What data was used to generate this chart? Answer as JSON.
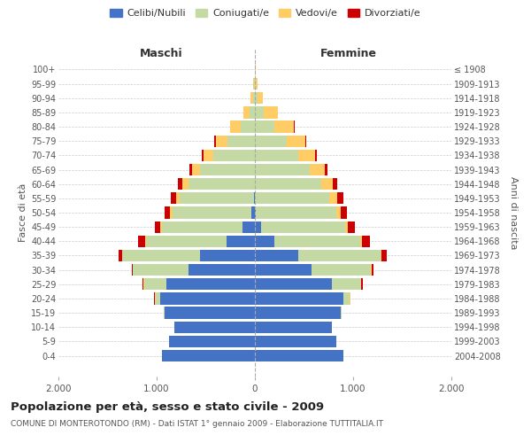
{
  "age_groups": [
    "0-4",
    "5-9",
    "10-14",
    "15-19",
    "20-24",
    "25-29",
    "30-34",
    "35-39",
    "40-44",
    "45-49",
    "50-54",
    "55-59",
    "60-64",
    "65-69",
    "70-74",
    "75-79",
    "80-84",
    "85-89",
    "90-94",
    "95-99",
    "100+"
  ],
  "birth_years": [
    "2004-2008",
    "1999-2003",
    "1994-1998",
    "1989-1993",
    "1984-1988",
    "1979-1983",
    "1974-1978",
    "1969-1973",
    "1964-1968",
    "1959-1963",
    "1954-1958",
    "1949-1953",
    "1944-1948",
    "1939-1943",
    "1934-1938",
    "1929-1933",
    "1924-1928",
    "1919-1923",
    "1914-1918",
    "1909-1913",
    "≤ 1908"
  ],
  "male_celibe": [
    950,
    870,
    820,
    920,
    960,
    900,
    680,
    560,
    290,
    130,
    40,
    5,
    0,
    0,
    0,
    0,
    0,
    0,
    0,
    0,
    0
  ],
  "male_coniugato": [
    0,
    0,
    2,
    10,
    60,
    230,
    560,
    790,
    820,
    820,
    800,
    760,
    680,
    560,
    420,
    280,
    140,
    50,
    20,
    8,
    2
  ],
  "male_vedovo": [
    0,
    0,
    0,
    0,
    0,
    5,
    5,
    5,
    10,
    15,
    25,
    35,
    55,
    80,
    100,
    120,
    110,
    70,
    25,
    8,
    2
  ],
  "male_divorziato": [
    0,
    0,
    0,
    0,
    5,
    5,
    10,
    30,
    65,
    55,
    55,
    55,
    45,
    25,
    18,
    12,
    6,
    0,
    0,
    0,
    0
  ],
  "female_celibe": [
    900,
    830,
    780,
    870,
    900,
    780,
    580,
    440,
    200,
    60,
    5,
    0,
    0,
    0,
    0,
    0,
    0,
    0,
    0,
    0,
    0
  ],
  "female_coniugata": [
    0,
    0,
    2,
    15,
    65,
    300,
    600,
    840,
    870,
    860,
    820,
    760,
    680,
    560,
    440,
    320,
    200,
    90,
    25,
    8,
    2
  ],
  "female_vedova": [
    0,
    0,
    0,
    0,
    5,
    5,
    8,
    10,
    20,
    30,
    50,
    80,
    110,
    150,
    175,
    195,
    200,
    145,
    55,
    15,
    5
  ],
  "female_divorziata": [
    0,
    0,
    0,
    0,
    5,
    10,
    20,
    50,
    80,
    65,
    65,
    60,
    50,
    25,
    15,
    10,
    5,
    0,
    0,
    0,
    0
  ],
  "colors": {
    "celibe": "#4472C4",
    "coniugato": "#C5D9A5",
    "vedovo": "#FFCC66",
    "divorziato": "#CC0000"
  },
  "title_main": "Popolazione per età, sesso e stato civile - 2009",
  "title_sub": "COMUNE DI MONTEROTONDO (RM) - Dati ISTAT 1° gennaio 2009 - Elaborazione TUTTITALIA.IT",
  "xlabel_left": "Maschi",
  "xlabel_right": "Femmine",
  "ylabel_left": "Fasce di età",
  "ylabel_right": "Anni di nascita",
  "xlim": 2000,
  "xticklabels": [
    "2.000",
    "1.000",
    "0",
    "1.000",
    "2.000"
  ],
  "background_color": "#ffffff",
  "grid_color": "#cccccc"
}
